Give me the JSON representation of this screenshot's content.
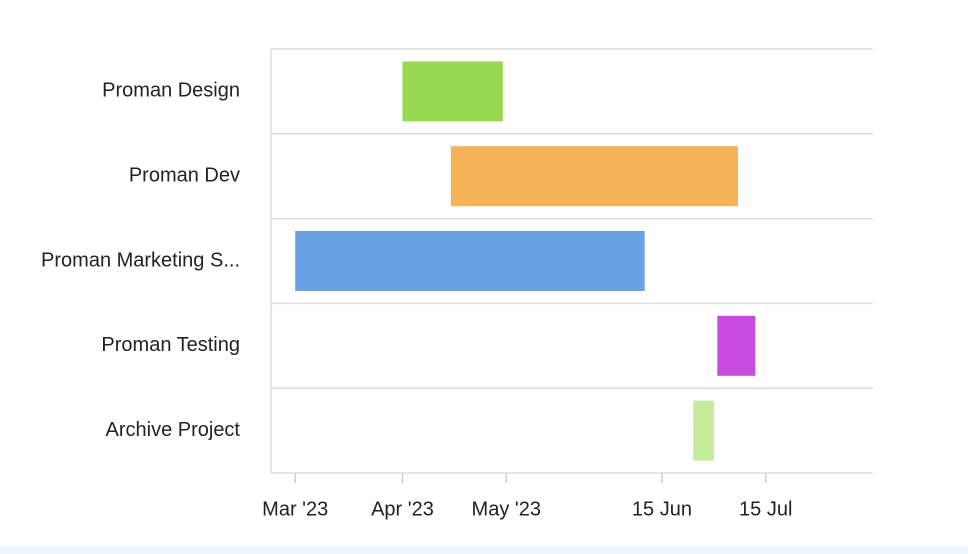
{
  "chart_data": {
    "type": "gantt",
    "categories": [
      "Proman Design",
      "Proman Dev",
      "Proman Marketing S...",
      "Proman Testing",
      "Archive Project"
    ],
    "start": [
      "2023-04-01",
      "2023-04-15",
      "2023-03-01",
      "2023-07-01",
      "2023-06-24"
    ],
    "end": [
      "2023-04-30",
      "2023-07-07",
      "2023-06-10",
      "2023-07-12",
      "2023-06-30"
    ],
    "colors": [
      "#97da52",
      "#f5b357",
      "#68a2e3",
      "#c84be0",
      "#c5ec9b"
    ],
    "xlim": [
      "2023-02-22",
      "2023-08-15"
    ],
    "xticks": [
      {
        "value": "2023-03-01",
        "label": "Mar '23"
      },
      {
        "value": "2023-04-01",
        "label": "Apr '23"
      },
      {
        "value": "2023-05-01",
        "label": "May '23"
      },
      {
        "value": "2023-06-15",
        "label": "15 Jun"
      },
      {
        "value": "2023-07-15",
        "label": "15 Jul"
      }
    ],
    "grid": true
  }
}
